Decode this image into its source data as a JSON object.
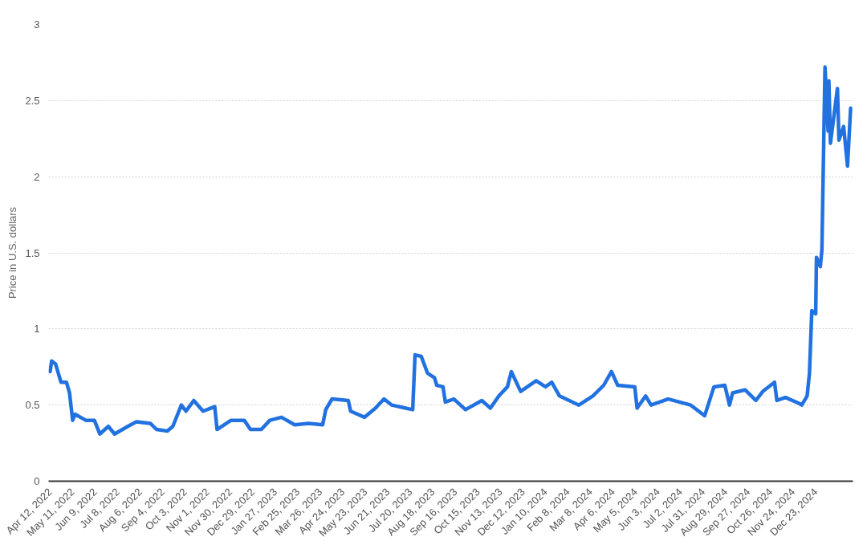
{
  "chart_data": {
    "type": "line",
    "ylabel": "Price in U.S. dollars",
    "xlim": [
      "2022-04-10",
      "2025-02-09"
    ],
    "ylim": [
      0,
      3
    ],
    "yticks": [
      0,
      0.5,
      1,
      1.5,
      2,
      2.5,
      3
    ],
    "xticks": [
      {
        "value": "2022-04-12",
        "label": "Apr 12, 2022"
      },
      {
        "value": "2022-05-11",
        "label": "May 11, 2022"
      },
      {
        "value": "2022-06-09",
        "label": "Jun 9, 2022"
      },
      {
        "value": "2022-07-08",
        "label": "Jul 8, 2022"
      },
      {
        "value": "2022-08-06",
        "label": "Aug 6, 2022"
      },
      {
        "value": "2022-09-04",
        "label": "Sep 4, 2022"
      },
      {
        "value": "2022-10-03",
        "label": "Oct 3, 2022"
      },
      {
        "value": "2022-11-01",
        "label": "Nov 1, 2022"
      },
      {
        "value": "2022-11-30",
        "label": "Nov 30, 2022"
      },
      {
        "value": "2022-12-29",
        "label": "Dec 29, 2022"
      },
      {
        "value": "2023-01-27",
        "label": "Jan 27, 2023"
      },
      {
        "value": "2023-02-25",
        "label": "Feb 25, 2023"
      },
      {
        "value": "2023-03-26",
        "label": "Mar 26, 2023"
      },
      {
        "value": "2023-04-24",
        "label": "Apr 24, 2023"
      },
      {
        "value": "2023-05-23",
        "label": "May 23, 2023"
      },
      {
        "value": "2023-06-21",
        "label": "Jun 21, 2023"
      },
      {
        "value": "2023-07-20",
        "label": "Jul 20, 2023"
      },
      {
        "value": "2023-08-18",
        "label": "Aug 18, 2023"
      },
      {
        "value": "2023-09-16",
        "label": "Sep 16, 2023"
      },
      {
        "value": "2023-10-15",
        "label": "Oct 15, 2023"
      },
      {
        "value": "2023-11-13",
        "label": "Nov 13, 2023"
      },
      {
        "value": "2023-12-12",
        "label": "Dec 12, 2023"
      },
      {
        "value": "2024-01-10",
        "label": "Jan 10, 2024"
      },
      {
        "value": "2024-02-08",
        "label": "Feb 8, 2024"
      },
      {
        "value": "2024-03-08",
        "label": "Mar 8, 2024"
      },
      {
        "value": "2024-04-06",
        "label": "Apr 6, 2024"
      },
      {
        "value": "2024-05-05",
        "label": "May 5, 2024"
      },
      {
        "value": "2024-06-03",
        "label": "Jun 3, 2024"
      },
      {
        "value": "2024-07-02",
        "label": "Jul 2, 2024"
      },
      {
        "value": "2024-07-31",
        "label": "Jul 31, 2024"
      },
      {
        "value": "2024-08-29",
        "label": "Aug 29, 2024"
      },
      {
        "value": "2024-09-27",
        "label": "Sep 27, 2024"
      },
      {
        "value": "2024-10-26",
        "label": "Oct 26, 2024"
      },
      {
        "value": "2024-11-24",
        "label": "Nov 24, 2024"
      },
      {
        "value": "2024-12-23",
        "label": "Dec 23, 2024"
      }
    ],
    "grid": "y",
    "marker": "none",
    "line_style": "solid",
    "x": [
      "2022-04-12",
      "2022-04-14",
      "2022-04-19",
      "2022-04-26",
      "2022-05-03",
      "2022-05-07",
      "2022-05-11",
      "2022-05-14",
      "2022-05-28",
      "2022-06-08",
      "2022-06-15",
      "2022-06-26",
      "2022-07-04",
      "2022-07-21",
      "2022-08-01",
      "2022-08-19",
      "2022-08-27",
      "2022-09-10",
      "2022-09-17",
      "2022-09-28",
      "2022-10-04",
      "2022-10-14",
      "2022-10-26",
      "2022-11-10",
      "2022-11-13",
      "2022-12-01",
      "2022-12-18",
      "2022-12-26",
      "2023-01-09",
      "2023-01-20",
      "2023-02-04",
      "2023-02-21",
      "2023-03-11",
      "2023-03-29",
      "2023-04-02",
      "2023-04-10",
      "2023-05-01",
      "2023-05-04",
      "2023-05-22",
      "2023-06-05",
      "2023-06-16",
      "2023-06-26",
      "2023-07-14",
      "2023-07-23",
      "2023-07-26",
      "2023-08-03",
      "2023-08-11",
      "2023-08-20",
      "2023-08-23",
      "2023-08-31",
      "2023-09-03",
      "2023-09-14",
      "2023-09-29",
      "2023-10-20",
      "2023-10-31",
      "2023-11-11",
      "2023-11-22",
      "2023-11-27",
      "2023-12-09",
      "2023-12-29",
      "2024-01-10",
      "2024-01-18",
      "2024-01-28",
      "2024-02-22",
      "2024-03-11",
      "2024-03-25",
      "2024-04-04",
      "2024-04-12",
      "2024-05-04",
      "2024-05-07",
      "2024-05-18",
      "2024-05-25",
      "2024-06-16",
      "2024-07-15",
      "2024-08-02",
      "2024-08-14",
      "2024-08-28",
      "2024-09-03",
      "2024-09-07",
      "2024-09-23",
      "2024-10-07",
      "2024-10-16",
      "2024-10-31",
      "2024-11-03",
      "2024-11-14",
      "2024-12-02",
      "2024-12-05",
      "2024-12-12",
      "2024-12-15",
      "2024-12-18",
      "2024-12-23",
      "2024-12-24",
      "2024-12-29",
      "2024-12-31",
      "2025-01-04",
      "2025-01-08",
      "2025-01-09",
      "2025-01-11",
      "2025-01-15",
      "2025-01-20",
      "2025-01-22",
      "2025-01-28",
      "2025-02-02",
      "2025-02-06"
    ],
    "series": [
      {
        "color": "#2172e0",
        "values": [
          0.72,
          0.79,
          0.77,
          0.65,
          0.65,
          0.58,
          0.4,
          0.44,
          0.4,
          0.4,
          0.31,
          0.36,
          0.31,
          0.36,
          0.39,
          0.38,
          0.34,
          0.33,
          0.36,
          0.5,
          0.46,
          0.53,
          0.46,
          0.49,
          0.34,
          0.4,
          0.4,
          0.34,
          0.34,
          0.4,
          0.42,
          0.37,
          0.38,
          0.37,
          0.47,
          0.54,
          0.53,
          0.46,
          0.42,
          0.48,
          0.54,
          0.5,
          0.48,
          0.47,
          0.83,
          0.82,
          0.71,
          0.68,
          0.63,
          0.62,
          0.52,
          0.54,
          0.47,
          0.53,
          0.48,
          0.56,
          0.62,
          0.72,
          0.59,
          0.66,
          0.62,
          0.65,
          0.56,
          0.5,
          0.56,
          0.63,
          0.72,
          0.63,
          0.62,
          0.48,
          0.56,
          0.5,
          0.54,
          0.5,
          0.43,
          0.62,
          0.63,
          0.5,
          0.58,
          0.6,
          0.53,
          0.59,
          0.65,
          0.53,
          0.55,
          0.51,
          0.5,
          0.56,
          0.71,
          1.12,
          1.1,
          1.47,
          1.41,
          1.52,
          2.72,
          2.3,
          2.63,
          2.22,
          2.38,
          2.58,
          2.24,
          2.33,
          2.07,
          2.45
        ]
      }
    ]
  }
}
